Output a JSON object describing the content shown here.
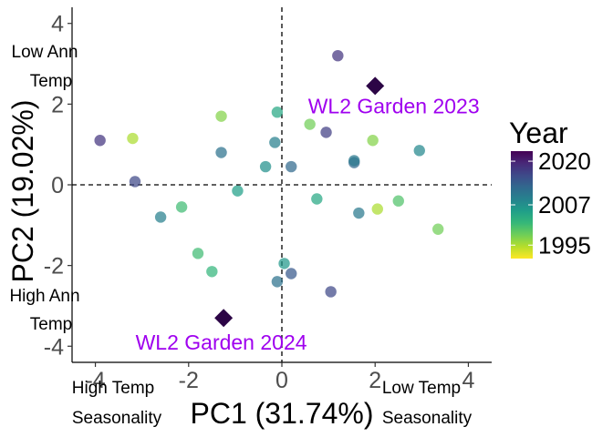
{
  "chart_data": {
    "type": "scatter",
    "xlabel": "PC1 (31.74%)",
    "ylabel": "PC2 (19.02%)",
    "xlim": [
      -4.5,
      4.5
    ],
    "ylim": [
      -4.4,
      4.4
    ],
    "x_ticks": [
      -4,
      -2,
      0,
      2,
      4
    ],
    "y_ticks": [
      -4,
      -2,
      0,
      2,
      4
    ],
    "reference_lines": {
      "x": 0,
      "y": 0,
      "style": "dashed"
    },
    "grid": false,
    "corner_labels": {
      "top_left": [
        "Low Ann",
        "Temp"
      ],
      "bottom_left": [
        "High Ann",
        "Temp"
      ],
      "bottom_x_left": [
        "High Temp",
        "Seasonality"
      ],
      "bottom_x_right": [
        "Low Temp",
        "Seasonality"
      ]
    },
    "legend": {
      "title": "Year",
      "placement": "right",
      "type": "colorbar",
      "ticks": [
        2020,
        2007,
        1995
      ],
      "range": [
        1991,
        2023
      ],
      "colors": [
        "#fde725",
        "#b5de2b",
        "#6ece58",
        "#35b779",
        "#1f9e89",
        "#26828e",
        "#31688e",
        "#3e4989",
        "#482878",
        "#440154"
      ]
    },
    "points": [
      {
        "x": 1.2,
        "y": 3.2,
        "year": 2018
      },
      {
        "x": -3.9,
        "y": 1.1,
        "year": 2018
      },
      {
        "x": -3.2,
        "y": 1.15,
        "year": 1995
      },
      {
        "x": -1.3,
        "y": 1.7,
        "year": 1997
      },
      {
        "x": -0.1,
        "y": 1.8,
        "year": 2004
      },
      {
        "x": 0.6,
        "y": 1.5,
        "year": 1998
      },
      {
        "x": 0.95,
        "y": 1.3,
        "year": 2017
      },
      {
        "x": 1.95,
        "y": 1.1,
        "year": 1997
      },
      {
        "x": 2.95,
        "y": 0.85,
        "year": 2008
      },
      {
        "x": -1.3,
        "y": 0.8,
        "year": 2011
      },
      {
        "x": -0.15,
        "y": 1.05,
        "year": 2009
      },
      {
        "x": -0.35,
        "y": 0.45,
        "year": 2007
      },
      {
        "x": 0.2,
        "y": 0.45,
        "year": 2012
      },
      {
        "x": 1.55,
        "y": 0.55,
        "year": 2012
      },
      {
        "x": 1.55,
        "y": 0.6,
        "year": 2010
      },
      {
        "x": -3.15,
        "y": 0.08,
        "year": 2016
      },
      {
        "x": -0.95,
        "y": -0.15,
        "year": 2005
      },
      {
        "x": 0.75,
        "y": -0.35,
        "year": 2004
      },
      {
        "x": 2.5,
        "y": -0.4,
        "year": 2000
      },
      {
        "x": -2.15,
        "y": -0.55,
        "year": 2001
      },
      {
        "x": -2.6,
        "y": -0.8,
        "year": 2009
      },
      {
        "x": 1.65,
        "y": -0.7,
        "year": 2010
      },
      {
        "x": 2.05,
        "y": -0.6,
        "year": 1995
      },
      {
        "x": 3.35,
        "y": -1.1,
        "year": 1998
      },
      {
        "x": -1.8,
        "y": -1.7,
        "year": 2001
      },
      {
        "x": 0.05,
        "y": -1.95,
        "year": 2006
      },
      {
        "x": -1.5,
        "y": -2.15,
        "year": 2002
      },
      {
        "x": 0.2,
        "y": -2.2,
        "year": 2014
      },
      {
        "x": -0.1,
        "y": -2.4,
        "year": 2011
      },
      {
        "x": 1.05,
        "y": -2.65,
        "year": 2016
      }
    ],
    "highlight_points": [
      {
        "x": 2.0,
        "y": 2.45,
        "year": 2023,
        "label": "WL2 Garden 2023",
        "label_x": 2.4,
        "label_y": 1.95
      },
      {
        "x": -1.25,
        "y": -3.3,
        "year": 2024,
        "label": "WL2 Garden 2024",
        "label_x": -1.3,
        "label_y": -3.9
      }
    ],
    "highlight_label_color": "#9f00ef",
    "highlight_color": "#2c0546"
  }
}
